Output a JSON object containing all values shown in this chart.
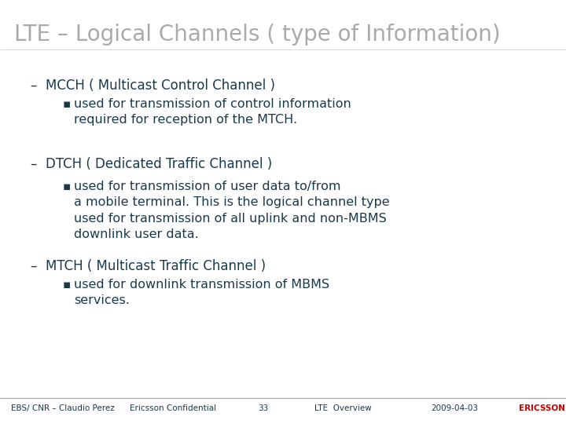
{
  "title": "LTE – Logical Channels ( type of Information)",
  "title_color": "#aaaaaa",
  "title_fontsize": 20,
  "bg_color": "#ffffff",
  "text_color": "#1a3a4a",
  "body_fontsize": 12,
  "bullet_fontsize": 11.5,
  "footer_fontsize": 7.5,
  "footer_items": [
    "EBS/ CNR – Claudio Perez",
    "Ericsson Confidential",
    "33",
    "LTE  Overview",
    "2009-04-03",
    "ERICSSON"
  ],
  "footer_line_color": "#b0b0b0",
  "sections": [
    {
      "heading": "MCCH ( Multicast Control Channel )",
      "bullet": "used for transmission of control information\nrequired for reception of the MTCH."
    },
    {
      "heading": "DTCH ( Dedicated Traffic Channel )",
      "bullet": "used for transmission of user data to/from\na mobile terminal. This is the logical channel type\nused for transmission of all uplink and non-MBMS\ndownlink user data."
    },
    {
      "heading": "MTCH ( Multicast Traffic Channel )",
      "bullet": "used for downlink transmission of MBMS\nservices."
    }
  ]
}
